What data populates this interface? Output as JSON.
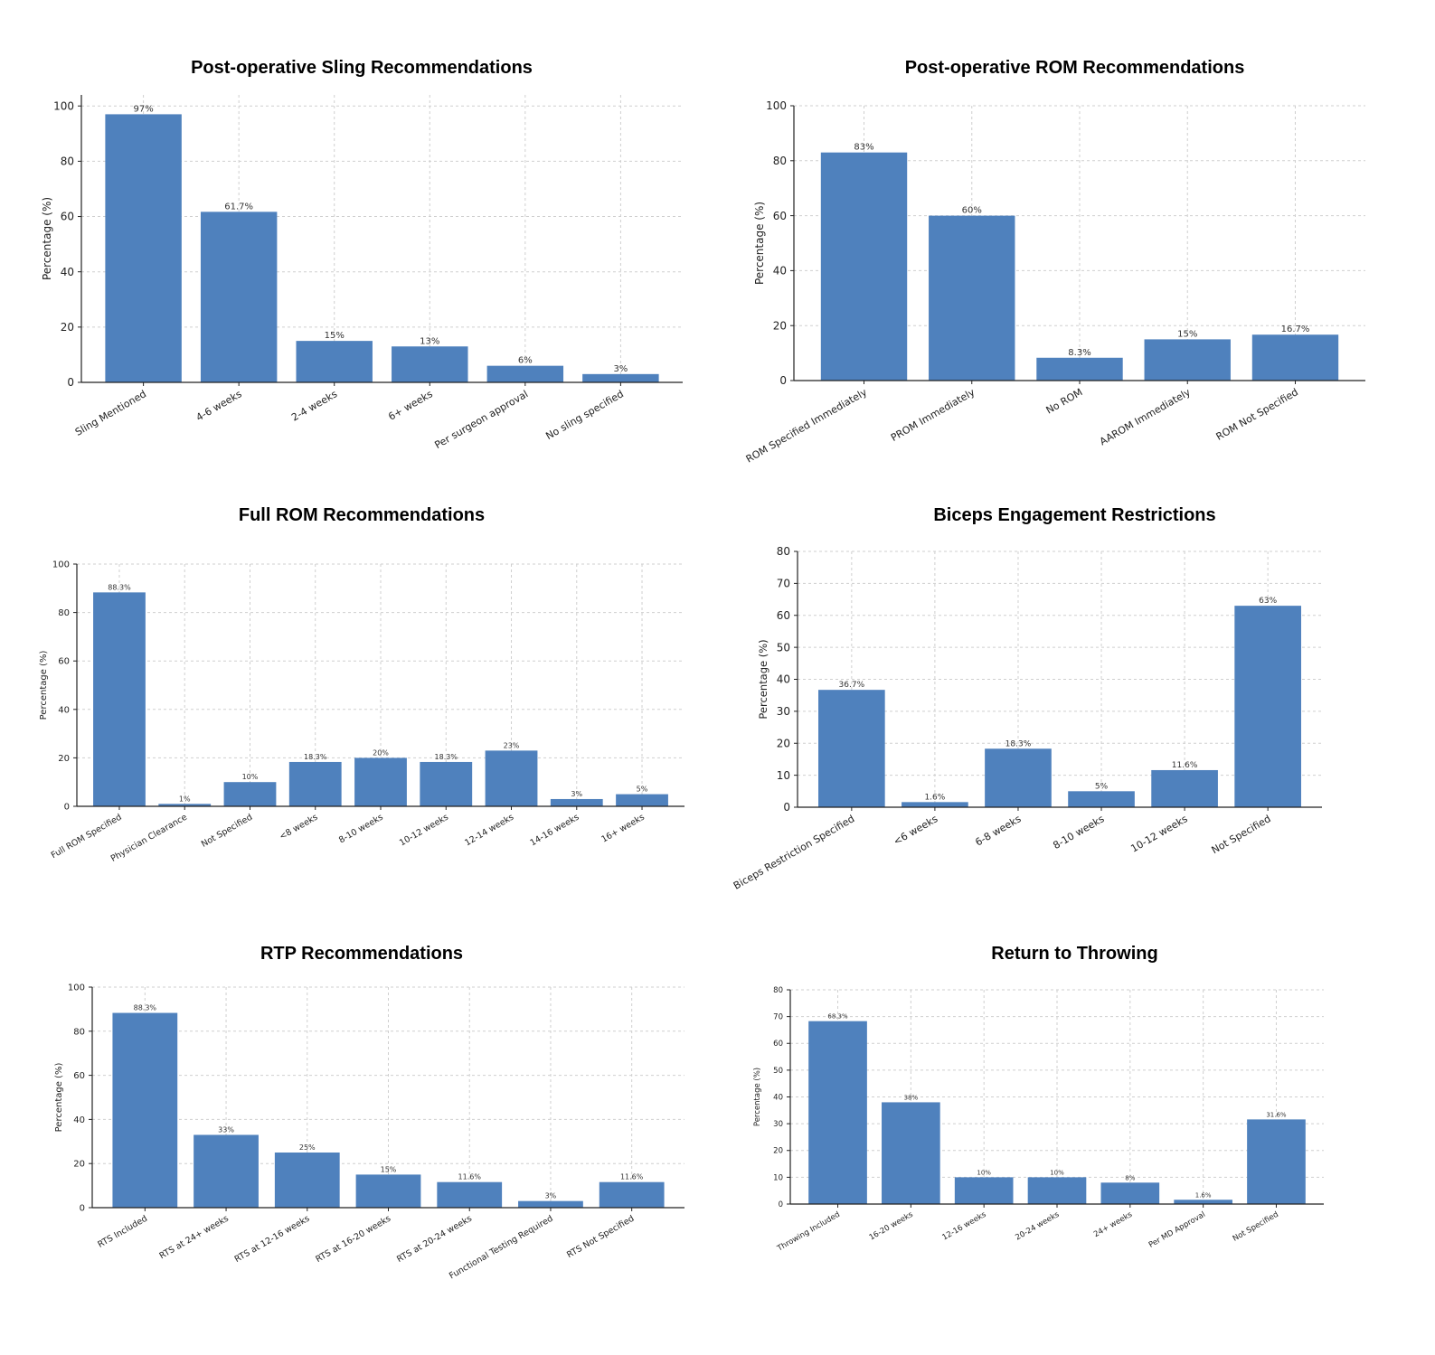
{
  "chart_data": [
    {
      "type": "bar",
      "title": "Post-operative Sling Recommendations",
      "ylabel": "Percentage (%)",
      "ylim": [
        0,
        104
      ],
      "yticks": [
        0,
        20,
        40,
        60,
        80,
        100
      ],
      "grid": true,
      "categories": [
        "Sling Mentioned",
        "4-6 weeks",
        "2-4 weeks",
        "6+ weeks",
        "Per surgeon approval",
        "No sling specified"
      ],
      "values": [
        97,
        61.7,
        15,
        13,
        6,
        3
      ],
      "value_labels": [
        "97%",
        "61.7%",
        "15%",
        "13%",
        "6%",
        "3%"
      ]
    },
    {
      "type": "bar",
      "title": "Post-operative ROM Recommendations",
      "ylabel": "Percentage (%)",
      "ylim": [
        0,
        100
      ],
      "yticks": [
        0,
        20,
        40,
        60,
        80,
        100
      ],
      "grid": true,
      "categories": [
        "ROM Specified Immediately",
        "PROM Immediately",
        "No ROM",
        "AAROM Immediately",
        "ROM Not Specified"
      ],
      "values": [
        83,
        60,
        8.3,
        15,
        16.7
      ],
      "value_labels": [
        "83%",
        "60%",
        "8.3%",
        "15%",
        "16.7%"
      ]
    },
    {
      "type": "bar",
      "title": "Full ROM Recommendations",
      "ylabel": "Percentage (%)",
      "ylim": [
        0,
        100
      ],
      "yticks": [
        0,
        20,
        40,
        60,
        80,
        100
      ],
      "grid": true,
      "categories": [
        "Full ROM Specified",
        "Physician Clearance",
        "Not Specified",
        "<8 weeks",
        "8-10 weeks",
        "10-12 weeks",
        "12-14 weeks",
        "14-16 weeks",
        "16+ weeks"
      ],
      "values": [
        88.3,
        1,
        10,
        18.3,
        20,
        18.3,
        23,
        3,
        5
      ],
      "value_labels": [
        "88.3%",
        "1%",
        "10%",
        "18.3%",
        "20%",
        "18.3%",
        "23%",
        "3%",
        "5%"
      ]
    },
    {
      "type": "bar",
      "title": "Biceps Engagement Restrictions",
      "ylabel": "Percentage (%)",
      "ylim": [
        0,
        80
      ],
      "yticks": [
        0,
        10,
        20,
        30,
        40,
        50,
        60,
        70,
        80
      ],
      "grid": true,
      "categories": [
        "Biceps Restriction Specified",
        "<6 weeks",
        "6-8 weeks",
        "8-10 weeks",
        "10-12 weeks",
        "Not Specified"
      ],
      "values": [
        36.7,
        1.6,
        18.3,
        5,
        11.6,
        63
      ],
      "value_labels": [
        "36.7%",
        "1.6%",
        "18.3%",
        "5%",
        "11.6%",
        "63%"
      ]
    },
    {
      "type": "bar",
      "title": "RTP Recommendations",
      "ylabel": "Percentage (%)",
      "ylim": [
        0,
        100
      ],
      "yticks": [
        0,
        20,
        40,
        60,
        80,
        100
      ],
      "grid": true,
      "categories": [
        "RTS Included",
        "RTS at 24+ weeks",
        "RTS at 12-16 weeks",
        "RTS at 16-20 weeks",
        "RTS at 20-24 weeks",
        "Functional Testing Required",
        "RTS Not Specified"
      ],
      "values": [
        88.3,
        33,
        25,
        15,
        11.6,
        3,
        11.6
      ],
      "value_labels": [
        "88.3%",
        "33%",
        "25%",
        "15%",
        "11.6%",
        "3%",
        "11.6%"
      ]
    },
    {
      "type": "bar",
      "title": "Return to Throwing",
      "ylabel": "Percentage (%)",
      "ylim": [
        0,
        80
      ],
      "yticks": [
        0,
        10,
        20,
        30,
        40,
        50,
        60,
        70,
        80
      ],
      "grid": true,
      "categories": [
        "Throwing Included",
        "16-20 weeks",
        "12-16 weeks",
        "20-24 weeks",
        "24+ weeks",
        "Per MD Approval",
        "Not Specified"
      ],
      "values": [
        68.3,
        38,
        10,
        10,
        8,
        1.6,
        31.6
      ],
      "value_labels": [
        "68.3%",
        "38%",
        "10%",
        "10%",
        "8%",
        "1.6%",
        "31.6%"
      ]
    }
  ]
}
